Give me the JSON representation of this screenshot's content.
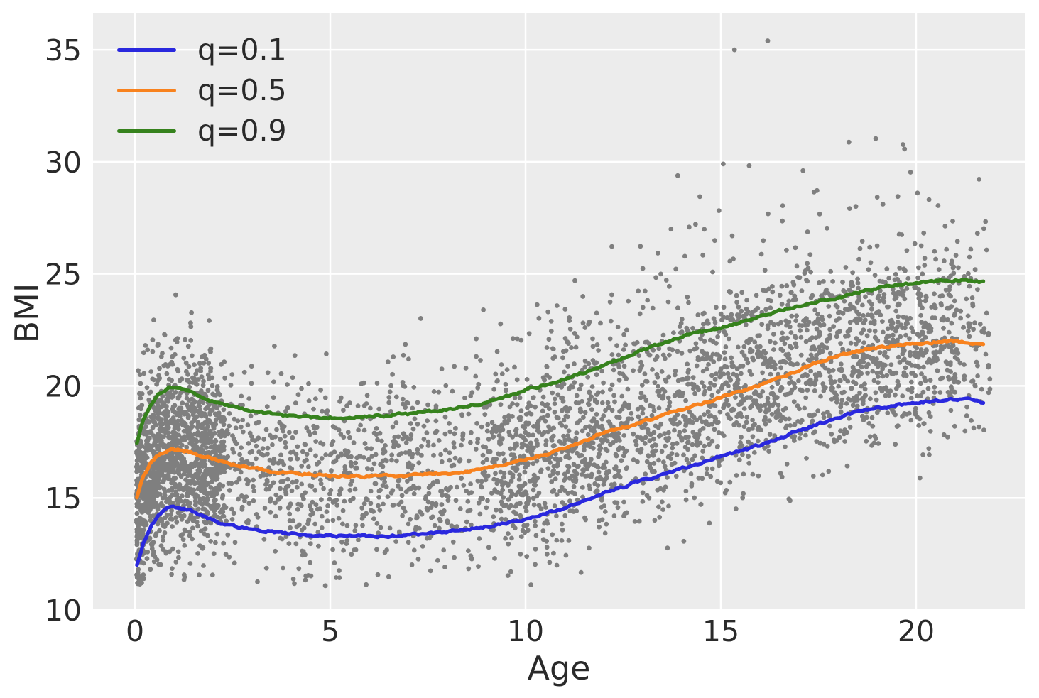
{
  "chart_data": {
    "type": "scatter",
    "title": "",
    "xlabel": "Age",
    "ylabel": "BMI",
    "x_tick_labels": [
      "0",
      "5",
      "10",
      "15",
      "20"
    ],
    "x_tick_values": [
      0,
      5,
      10,
      15,
      20
    ],
    "y_tick_labels": [
      "10",
      "15",
      "20",
      "25",
      "30",
      "35"
    ],
    "y_tick_values": [
      10,
      15,
      20,
      25,
      30,
      35
    ],
    "xlim": [
      -1.073,
      22.782
    ],
    "ylim": [
      10,
      36.619
    ],
    "grid": true,
    "legend_position": "upper-left",
    "colors": {
      "figure_background": "#ffffff",
      "plot_background": "#ececec",
      "gridline": "#ffffff",
      "text": "#2a2a2a",
      "scatter": "#7f7f7f"
    },
    "curve_ages": [
      0.05,
      0.2,
      0.4,
      0.6,
      0.9,
      1.2,
      1.6,
      2,
      2.5,
      3,
      3.5,
      4,
      4.5,
      5,
      5.5,
      6,
      6.5,
      7,
      7.5,
      8,
      8.5,
      9,
      9.5,
      10,
      10.5,
      11,
      11.5,
      12,
      12.5,
      13,
      13.5,
      14,
      14.5,
      15,
      15.5,
      16,
      16.5,
      17,
      17.5,
      18,
      18.5,
      19,
      19.5,
      20,
      20.5,
      21,
      21.4,
      21.75
    ],
    "series": [
      {
        "name": "q=0.1",
        "quantile": 0.1,
        "color": "#2a28de",
        "bmi": [
          12.0,
          12.9,
          13.7,
          14.2,
          14.6,
          14.55,
          14.3,
          14.0,
          13.75,
          13.6,
          13.5,
          13.4,
          13.35,
          13.3,
          13.3,
          13.3,
          13.3,
          13.35,
          13.4,
          13.5,
          13.6,
          13.7,
          13.85,
          14.05,
          14.3,
          14.55,
          14.9,
          15.25,
          15.5,
          15.8,
          16.05,
          16.3,
          16.55,
          16.85,
          17.1,
          17.35,
          17.65,
          18.0,
          18.3,
          18.6,
          18.85,
          19.0,
          19.15,
          19.25,
          19.35,
          19.4,
          19.4,
          19.25
        ]
      },
      {
        "name": "q=0.5",
        "quantile": 0.5,
        "color": "#f8821e",
        "bmi": [
          15.0,
          15.9,
          16.55,
          16.9,
          17.2,
          17.15,
          16.95,
          16.75,
          16.5,
          16.35,
          16.2,
          16.1,
          16.05,
          16.0,
          15.97,
          15.97,
          16.0,
          16.0,
          16.05,
          16.1,
          16.2,
          16.35,
          16.5,
          16.7,
          16.95,
          17.2,
          17.55,
          17.9,
          18.15,
          18.4,
          18.65,
          18.95,
          19.2,
          19.5,
          19.75,
          20.0,
          20.35,
          20.7,
          21.05,
          21.35,
          21.55,
          21.7,
          21.8,
          21.9,
          21.95,
          22.0,
          21.95,
          21.85
        ]
      },
      {
        "name": "q=0.9",
        "quantile": 0.9,
        "color": "#36821d",
        "bmi": [
          17.4,
          18.4,
          19.1,
          19.6,
          19.95,
          19.85,
          19.6,
          19.3,
          19.05,
          18.9,
          18.75,
          18.65,
          18.6,
          18.58,
          18.6,
          18.65,
          18.7,
          18.75,
          18.85,
          18.95,
          19.1,
          19.25,
          19.5,
          19.8,
          20.05,
          20.3,
          20.6,
          20.9,
          21.25,
          21.6,
          21.9,
          22.2,
          22.4,
          22.6,
          22.85,
          23.1,
          23.35,
          23.55,
          23.75,
          23.95,
          24.15,
          24.35,
          24.5,
          24.6,
          24.67,
          24.7,
          24.68,
          24.6
        ]
      }
    ],
    "scatter": {
      "n_points": 4600,
      "seed": 1337,
      "point_radius": 3.4,
      "line_width": 5.2,
      "age_groups": [
        {
          "min": 0.04,
          "max": 2.3,
          "weight": 0.3,
          "skew": 1.25
        },
        {
          "min": 2.3,
          "max": 9.0,
          "weight": 0.17,
          "skew": 1.0
        },
        {
          "min": 9.0,
          "max": 21.9,
          "weight": 0.53,
          "skew": 1.0
        }
      ],
      "old_age_taper": {
        "above": 21.05,
        "keep_prob": 0.45
      },
      "upper_tail": [
        {
          "min": 9.0,
          "max": 21.9,
          "prob": 0.05,
          "base": 0.2,
          "amp": 7.5
        },
        {
          "min": 2.3,
          "max": 9.0,
          "prob": 0.025,
          "base": 0.3,
          "amp": 5.0
        },
        {
          "min": 0.04,
          "max": 2.3,
          "prob": 0.012,
          "base": 0.3,
          "amp": 4.5
        }
      ],
      "bmi_min": 11.08,
      "bmi_max": 35.45,
      "extra_points": [
        [
          15.35,
          35.0
        ],
        [
          16.2,
          35.4
        ]
      ]
    }
  }
}
